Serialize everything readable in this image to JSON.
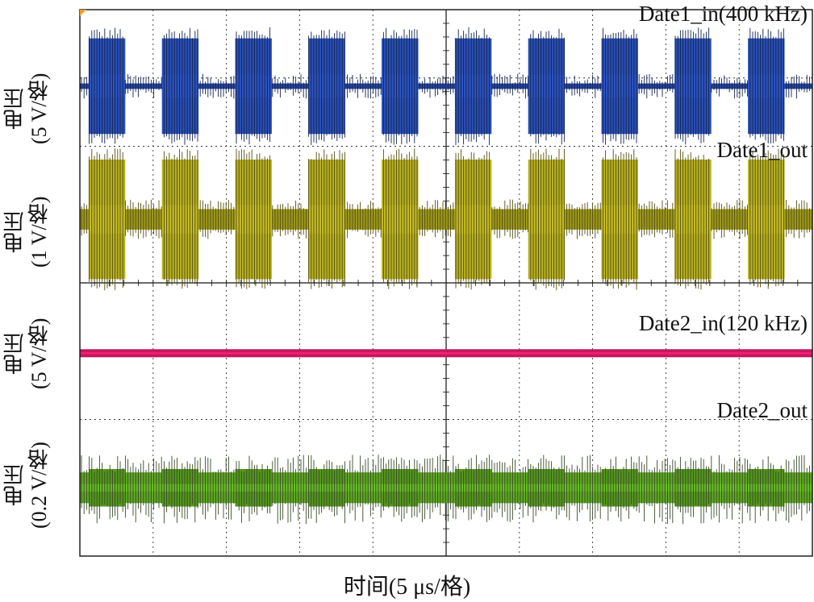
{
  "chart_data": {
    "type": "line",
    "title": "",
    "xlabel": "时间(5 μs/格)",
    "x_divisions": 10,
    "y_divisions": 8,
    "grid": true,
    "channels": [
      {
        "name": "Date1_in(400 kHz)",
        "ylabel_top": "电压",
        "ylabel_bottom": "(5 V/格)",
        "color": "#2a4fb5",
        "signal": "burst",
        "bursts": 10,
        "burst_height_div": 1.4,
        "idle_height_div": 0.08
      },
      {
        "name": "Date1_out",
        "ylabel_top": "电压",
        "ylabel_bottom": "(1 V/格)",
        "color": "#b8b021",
        "signal": "burst",
        "bursts": 10,
        "burst_height_div": 1.75,
        "idle_height_div": 0.3
      },
      {
        "name": "Date2_in(120 kHz)",
        "ylabel_top": "电压",
        "ylabel_bottom": "(5 V/格)",
        "color": "#c2185b",
        "signal": "flat",
        "bursts": 0,
        "burst_height_div": 0,
        "idle_height_div": 0.06
      },
      {
        "name": "Date2_out",
        "ylabel_top": "电压",
        "ylabel_bottom": "(0.2 V/格)",
        "color": "#5ca81f",
        "signal": "noise",
        "bursts": 10,
        "burst_height_div": 0.55,
        "idle_height_div": 0.45
      }
    ]
  },
  "colors": {
    "grid": "#333333",
    "frame": "#111111",
    "marker": "#f0a020"
  }
}
